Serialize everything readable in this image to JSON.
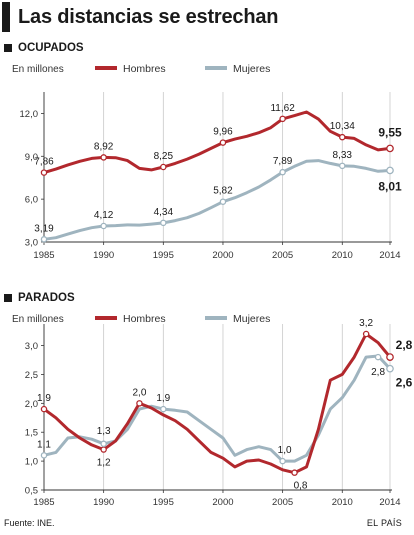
{
  "title": "Las distancias se estrechan",
  "source": "Fuente: INE.",
  "brand": "EL PAÍS",
  "colors": {
    "hombres": "#b2282d",
    "mujeres": "#9fb4bf",
    "axis": "#333333",
    "grid": "#c9c9c9"
  },
  "chart_data": [
    {
      "type": "line",
      "section": "OCUPADOS",
      "unit_label": "En millones",
      "legend": [
        "Hombres",
        "Mujeres"
      ],
      "legend_position": "top-center",
      "x_ticks": [
        "1985",
        "1990",
        "1995",
        "2000",
        "2005",
        "2010",
        "2014"
      ],
      "y_ticks": [
        "3,0",
        "6,0",
        "9,0",
        "12,0"
      ],
      "ylim": [
        3,
        12.8
      ],
      "xlim": [
        1985,
        2014
      ],
      "grid": "vertical at labeled years",
      "series": [
        {
          "name": "Hombres",
          "x": [
            1985,
            1986,
            1987,
            1988,
            1989,
            1990,
            1991,
            1992,
            1993,
            1994,
            1995,
            1996,
            1997,
            1998,
            1999,
            2000,
            2001,
            2002,
            2003,
            2004,
            2005,
            2006,
            2007,
            2008,
            2009,
            2010,
            2011,
            2012,
            2013,
            2014
          ],
          "values": [
            7.86,
            8.1,
            8.4,
            8.65,
            8.85,
            8.92,
            8.9,
            8.7,
            8.15,
            8.05,
            8.25,
            8.5,
            8.8,
            9.15,
            9.55,
            9.96,
            10.2,
            10.4,
            10.65,
            11.0,
            11.62,
            11.85,
            12.1,
            11.6,
            10.75,
            10.34,
            10.25,
            9.8,
            9.45,
            9.55
          ]
        },
        {
          "name": "Mujeres",
          "x": [
            1985,
            1986,
            1987,
            1988,
            1989,
            1990,
            1991,
            1992,
            1993,
            1994,
            1995,
            1996,
            1997,
            1998,
            1999,
            2000,
            2001,
            2002,
            2003,
            2004,
            2005,
            2006,
            2007,
            2008,
            2009,
            2010,
            2011,
            2012,
            2013,
            2014
          ],
          "values": [
            3.19,
            3.3,
            3.55,
            3.8,
            4.0,
            4.12,
            4.15,
            4.2,
            4.18,
            4.25,
            4.34,
            4.5,
            4.7,
            5.0,
            5.4,
            5.82,
            6.1,
            6.45,
            6.85,
            7.35,
            7.89,
            8.3,
            8.65,
            8.7,
            8.5,
            8.33,
            8.3,
            8.15,
            7.95,
            8.01
          ]
        }
      ],
      "data_labels": [
        {
          "series": "Hombres",
          "x": 1985,
          "value": 7.86,
          "text": "7,86"
        },
        {
          "series": "Hombres",
          "x": 1990,
          "value": 8.92,
          "text": "8,92"
        },
        {
          "series": "Hombres",
          "x": 1995,
          "value": 8.25,
          "text": "8,25"
        },
        {
          "series": "Hombres",
          "x": 2000,
          "value": 9.96,
          "text": "9,96"
        },
        {
          "series": "Hombres",
          "x": 2005,
          "value": 11.62,
          "text": "11,62"
        },
        {
          "series": "Hombres",
          "x": 2010,
          "value": 10.34,
          "text": "10,34"
        },
        {
          "series": "Hombres",
          "x": 2014,
          "value": 9.55,
          "text": "9,55",
          "bold": true
        },
        {
          "series": "Mujeres",
          "x": 1985,
          "value": 3.19,
          "text": "3,19"
        },
        {
          "series": "Mujeres",
          "x": 1990,
          "value": 4.12,
          "text": "4,12"
        },
        {
          "series": "Mujeres",
          "x": 1995,
          "value": 4.34,
          "text": "4,34"
        },
        {
          "series": "Mujeres",
          "x": 2000,
          "value": 5.82,
          "text": "5,82"
        },
        {
          "series": "Mujeres",
          "x": 2005,
          "value": 7.89,
          "text": "7,89"
        },
        {
          "series": "Mujeres",
          "x": 2010,
          "value": 8.33,
          "text": "8,33"
        },
        {
          "series": "Mujeres",
          "x": 2014,
          "value": 8.01,
          "text": "8,01",
          "bold": true
        }
      ]
    },
    {
      "type": "line",
      "section": "PARADOS",
      "unit_label": "En millones",
      "legend": [
        "Hombres",
        "Mujeres"
      ],
      "legend_position": "top-center",
      "x_ticks": [
        "1985",
        "1990",
        "1995",
        "2000",
        "2005",
        "2010",
        "2014"
      ],
      "y_ticks": [
        "0,5",
        "1,0",
        "1,5",
        "2,0",
        "2,5",
        "3,0"
      ],
      "ylim": [
        0.5,
        3.2
      ],
      "xlim": [
        1985,
        2014
      ],
      "grid": "vertical at labeled years",
      "series": [
        {
          "name": "Hombres",
          "x": [
            1985,
            1986,
            1987,
            1988,
            1989,
            1990,
            1991,
            1992,
            1993,
            1994,
            1995,
            1996,
            1997,
            1998,
            1999,
            2000,
            2001,
            2002,
            2003,
            2004,
            2005,
            2006,
            2007,
            2008,
            2009,
            2010,
            2011,
            2012,
            2013,
            2014
          ],
          "values": [
            1.9,
            1.75,
            1.55,
            1.4,
            1.28,
            1.2,
            1.35,
            1.65,
            2.0,
            1.92,
            1.8,
            1.7,
            1.55,
            1.35,
            1.15,
            1.05,
            0.9,
            1.0,
            1.02,
            0.95,
            0.85,
            0.8,
            0.9,
            1.55,
            2.4,
            2.5,
            2.8,
            3.2,
            3.05,
            2.8
          ]
        },
        {
          "name": "Mujeres",
          "x": [
            1985,
            1986,
            1987,
            1988,
            1989,
            1990,
            1991,
            1992,
            1993,
            1994,
            1995,
            1996,
            1997,
            1998,
            1999,
            2000,
            2001,
            2002,
            2003,
            2004,
            2005,
            2006,
            2007,
            2008,
            2009,
            2010,
            2011,
            2012,
            2013,
            2014
          ],
          "values": [
            1.1,
            1.15,
            1.4,
            1.42,
            1.38,
            1.3,
            1.35,
            1.55,
            1.9,
            1.95,
            1.9,
            1.88,
            1.85,
            1.7,
            1.55,
            1.4,
            1.1,
            1.2,
            1.25,
            1.2,
            1.0,
            1.0,
            1.1,
            1.45,
            1.9,
            2.1,
            2.4,
            2.8,
            2.82,
            2.6
          ]
        }
      ],
      "data_labels": [
        {
          "series": "Hombres",
          "x": 1985,
          "value": 1.9,
          "text": "1,9"
        },
        {
          "series": "Hombres",
          "x": 1990,
          "value": 1.2,
          "text": "1,2"
        },
        {
          "series": "Hombres",
          "x": 1993,
          "value": 2.0,
          "text": "2,0"
        },
        {
          "series": "Hombres",
          "x": 2006,
          "value": 0.8,
          "text": "0,8"
        },
        {
          "series": "Hombres",
          "x": 2012,
          "value": 3.2,
          "text": "3,2"
        },
        {
          "series": "Hombres",
          "x": 2014,
          "value": 2.8,
          "text": "2,8",
          "bold": true
        },
        {
          "series": "Mujeres",
          "x": 1985,
          "value": 1.1,
          "text": "1,1"
        },
        {
          "series": "Mujeres",
          "x": 1990,
          "value": 1.3,
          "text": "1,3"
        },
        {
          "series": "Mujeres",
          "x": 1995,
          "value": 1.9,
          "text": "1,9"
        },
        {
          "series": "Mujeres",
          "x": 2005,
          "value": 1.0,
          "text": "1,0"
        },
        {
          "series": "Mujeres",
          "x": 2013,
          "value": 2.8,
          "text": "2,8"
        },
        {
          "series": "Mujeres",
          "x": 2014,
          "value": 2.6,
          "text": "2,6",
          "bold": true
        }
      ]
    }
  ]
}
